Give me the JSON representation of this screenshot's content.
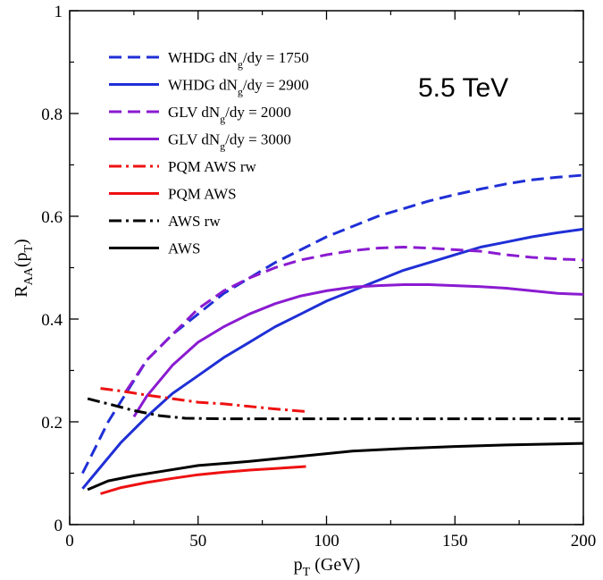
{
  "chart_data": {
    "type": "line",
    "annotation": "5.5 TeV",
    "xlabel": {
      "main": "p",
      "sub": "T",
      "rest": " (GeV)"
    },
    "ylabel": {
      "main": "R",
      "sub": "AA",
      "mid": "(p",
      "sub2": "T",
      "end": ")"
    },
    "xlim": [
      0,
      200
    ],
    "ylim": [
      0,
      1
    ],
    "xticks": [
      0,
      50,
      100,
      150,
      200
    ],
    "yticks": [
      0,
      0.2,
      0.4,
      0.6,
      0.8,
      1
    ],
    "xtick_labels": [
      "0",
      "50",
      "100",
      "150",
      "200"
    ],
    "ytick_labels": [
      "0",
      "0.2",
      "0.4",
      "0.6",
      "0.8",
      "1"
    ],
    "grid": false,
    "legend_position": "top-left",
    "series": [
      {
        "legend": {
          "pre": "WHDG dN",
          "sub": "g",
          "post": "/dy = 1750"
        },
        "color": "#1f2fd6",
        "dash": "dash",
        "x": [
          5,
          10,
          15,
          20,
          25,
          30,
          40,
          50,
          60,
          70,
          80,
          90,
          100,
          110,
          120,
          130,
          140,
          150,
          160,
          170,
          180,
          190,
          200
        ],
        "y": [
          0.1,
          0.15,
          0.2,
          0.24,
          0.28,
          0.32,
          0.37,
          0.41,
          0.45,
          0.48,
          0.51,
          0.535,
          0.56,
          0.58,
          0.6,
          0.615,
          0.63,
          0.642,
          0.653,
          0.663,
          0.671,
          0.676,
          0.68
        ]
      },
      {
        "legend": {
          "pre": "WHDG dN",
          "sub": "g",
          "post": "/dy = 2900"
        },
        "color": "#1f2fd6",
        "dash": "solid",
        "x": [
          5,
          10,
          20,
          30,
          40,
          50,
          60,
          70,
          80,
          90,
          100,
          110,
          120,
          130,
          140,
          150,
          160,
          170,
          180,
          190,
          200
        ],
        "y": [
          0.07,
          0.1,
          0.16,
          0.21,
          0.255,
          0.29,
          0.325,
          0.355,
          0.385,
          0.41,
          0.435,
          0.455,
          0.475,
          0.495,
          0.51,
          0.525,
          0.54,
          0.55,
          0.56,
          0.568,
          0.575
        ]
      },
      {
        "legend": {
          "pre": "GLV dN",
          "sub": "g",
          "post": "/dy = 2000"
        },
        "color": "#8a1bd1",
        "dash": "dash",
        "x": [
          22,
          30,
          40,
          50,
          60,
          70,
          80,
          90,
          100,
          110,
          120,
          130,
          140,
          150,
          160,
          170,
          180,
          190,
          200
        ],
        "y": [
          0.26,
          0.32,
          0.37,
          0.42,
          0.455,
          0.48,
          0.5,
          0.515,
          0.525,
          0.533,
          0.538,
          0.54,
          0.538,
          0.535,
          0.532,
          0.525,
          0.52,
          0.517,
          0.515
        ]
      },
      {
        "legend": {
          "pre": "GLV dN",
          "sub": "g",
          "post": "/dy = 3000"
        },
        "color": "#8a1bd1",
        "dash": "solid",
        "x": [
          25,
          30,
          40,
          50,
          60,
          70,
          80,
          90,
          100,
          110,
          120,
          130,
          140,
          150,
          160,
          170,
          180,
          190,
          200
        ],
        "y": [
          0.21,
          0.25,
          0.31,
          0.355,
          0.385,
          0.41,
          0.43,
          0.445,
          0.455,
          0.462,
          0.465,
          0.467,
          0.467,
          0.465,
          0.463,
          0.46,
          0.455,
          0.45,
          0.448
        ]
      },
      {
        "legend": {
          "pre": "PQM AWS rw",
          "sub": "",
          "post": ""
        },
        "color": "#ee1111",
        "dash": "dashdot",
        "x": [
          12,
          20,
          30,
          40,
          50,
          60,
          70,
          80,
          92
        ],
        "y": [
          0.265,
          0.26,
          0.252,
          0.245,
          0.238,
          0.235,
          0.23,
          0.225,
          0.22
        ]
      },
      {
        "legend": {
          "pre": "PQM AWS",
          "sub": "",
          "post": ""
        },
        "color": "#ee1111",
        "dash": "solid",
        "x": [
          12,
          20,
          30,
          40,
          50,
          60,
          70,
          80,
          92
        ],
        "y": [
          0.06,
          0.072,
          0.082,
          0.09,
          0.097,
          0.102,
          0.106,
          0.109,
          0.113
        ]
      },
      {
        "legend": {
          "pre": "AWS rw",
          "sub": "",
          "post": ""
        },
        "color": "#000000",
        "dash": "dashdot",
        "x": [
          7,
          15,
          25,
          35,
          45,
          60,
          80,
          100,
          150,
          200
        ],
        "y": [
          0.245,
          0.235,
          0.222,
          0.212,
          0.207,
          0.206,
          0.206,
          0.206,
          0.206,
          0.206
        ]
      },
      {
        "legend": {
          "pre": "AWS",
          "sub": "",
          "post": ""
        },
        "color": "#000000",
        "dash": "solid",
        "x": [
          7,
          15,
          25,
          35,
          50,
          70,
          90,
          110,
          130,
          150,
          170,
          200
        ],
        "y": [
          0.068,
          0.085,
          0.095,
          0.103,
          0.115,
          0.123,
          0.133,
          0.143,
          0.148,
          0.152,
          0.155,
          0.158
        ]
      }
    ]
  }
}
